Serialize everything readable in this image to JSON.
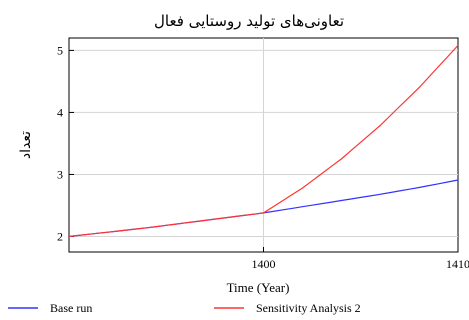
{
  "chart_data": {
    "type": "line",
    "title": "تعاونی‌های تولید روستایی فعال",
    "xlabel": "Time (Year)",
    "ylabel": "تعداد",
    "xlim": [
      1390,
      1410
    ],
    "ylim": [
      1.75,
      5.2
    ],
    "xticks": [
      1400,
      1410
    ],
    "yticks": [
      2,
      3,
      4,
      5
    ],
    "grid": true,
    "legend_position": "bottom",
    "series": [
      {
        "name": "Base run",
        "color": "#3333ff",
        "x": [
          1390,
          1392,
          1394,
          1396,
          1398,
          1400,
          1402,
          1404,
          1406,
          1408,
          1410
        ],
        "y": [
          2.0,
          2.07,
          2.14,
          2.22,
          2.3,
          2.38,
          2.48,
          2.58,
          2.68,
          2.79,
          2.91
        ]
      },
      {
        "name": "Sensitivity Analysis 2",
        "color": "#ff3333",
        "x": [
          1390,
          1392,
          1394,
          1396,
          1398,
          1400,
          1402,
          1404,
          1406,
          1408,
          1410
        ],
        "y": [
          2.0,
          2.07,
          2.14,
          2.22,
          2.3,
          2.38,
          2.78,
          3.25,
          3.79,
          4.4,
          5.08
        ]
      }
    ]
  }
}
